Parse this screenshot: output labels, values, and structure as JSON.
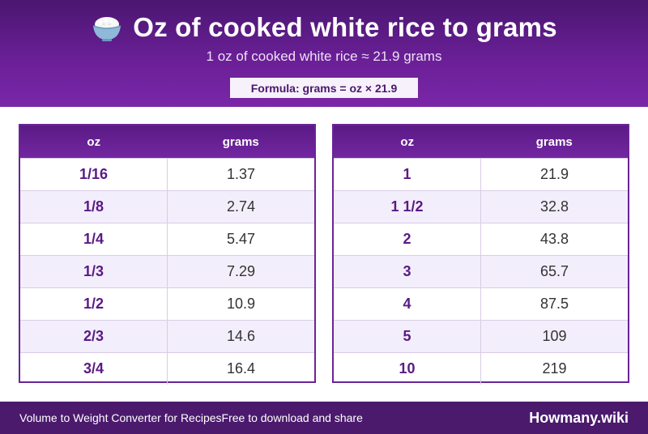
{
  "header": {
    "title": "Oz of cooked white rice to grams",
    "subtitle": "1 oz of cooked white rice ≈ 21.9 grams",
    "formula": "Formula: grams = oz × 21.9",
    "icon": "rice-bowl-icon"
  },
  "tables": [
    {
      "headers": [
        "oz",
        "grams"
      ],
      "rows": [
        {
          "oz": "1/16",
          "grams": "1.37"
        },
        {
          "oz": "1/8",
          "grams": "2.74"
        },
        {
          "oz": "1/4",
          "grams": "5.47"
        },
        {
          "oz": "1/3",
          "grams": "7.29"
        },
        {
          "oz": "1/2",
          "grams": "10.9"
        },
        {
          "oz": "2/3",
          "grams": "14.6"
        },
        {
          "oz": "3/4",
          "grams": "16.4"
        }
      ]
    },
    {
      "headers": [
        "oz",
        "grams"
      ],
      "rows": [
        {
          "oz": "1",
          "grams": "21.9"
        },
        {
          "oz": "1 1/2",
          "grams": "32.8"
        },
        {
          "oz": "2",
          "grams": "43.8"
        },
        {
          "oz": "3",
          "grams": "65.7"
        },
        {
          "oz": "4",
          "grams": "87.5"
        },
        {
          "oz": "5",
          "grams": "109"
        },
        {
          "oz": "10",
          "grams": "219"
        }
      ]
    }
  ],
  "footer": {
    "link_1": "Volume to Weight Converter for Recipes",
    "link_2": "Free to download and share",
    "brand": "Howmany.wiki"
  },
  "colors": {
    "header_purple": "#6a1f96",
    "dark_purple": "#4b1a6d",
    "accent_text": "#5a1a85",
    "row_alt": "#f3eefb"
  }
}
